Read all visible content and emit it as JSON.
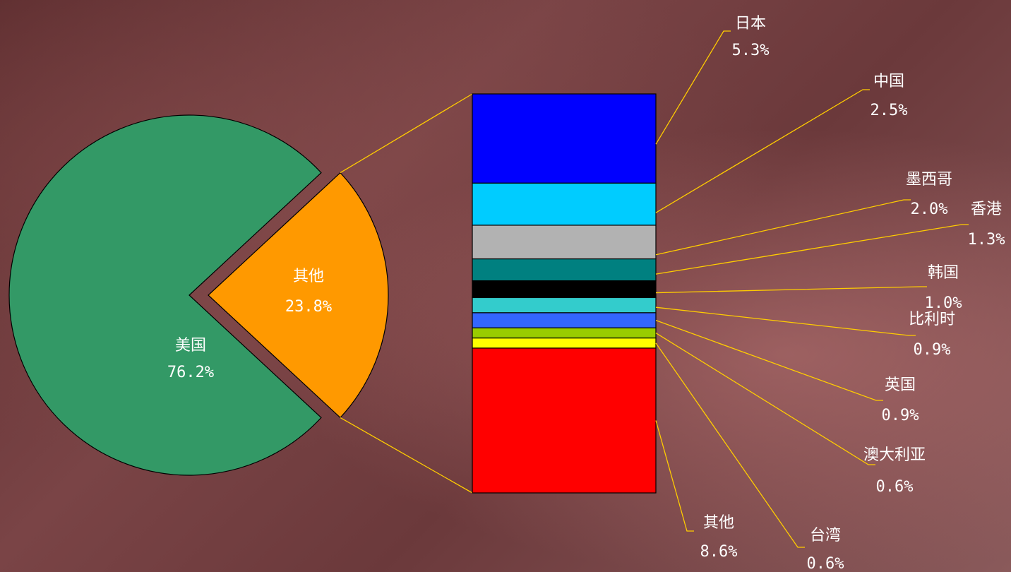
{
  "chart_data": [
    {
      "type": "pie",
      "slices": [
        {
          "label": "美国",
          "value": 76.2,
          "pct": "76.2%",
          "color": "#339966"
        },
        {
          "label": "其他",
          "value": 23.8,
          "pct": "23.8%",
          "color": "#ff9900"
        }
      ]
    },
    {
      "type": "bar",
      "stacked": true,
      "series": [
        {
          "label": "日本",
          "value": 5.3,
          "pct": "5.3%",
          "color": "#0000ff"
        },
        {
          "label": "中国",
          "value": 2.5,
          "pct": "2.5%",
          "color": "#00ccff"
        },
        {
          "label": "墨西哥",
          "value": 2.0,
          "pct": "2.0%",
          "color": "#b2b2b2"
        },
        {
          "label": "香港",
          "value": 1.3,
          "pct": "1.3%",
          "color": "#008080"
        },
        {
          "label": "韩国",
          "value": 1.0,
          "pct": "1.0%",
          "color": "#000000"
        },
        {
          "label": "比利时",
          "value": 0.9,
          "pct": "0.9%",
          "color": "#33cccc"
        },
        {
          "label": "英国",
          "value": 0.9,
          "pct": "0.9%",
          "color": "#3366ff"
        },
        {
          "label": "澳大利亚",
          "value": 0.6,
          "pct": "0.6%",
          "color": "#99cc00"
        },
        {
          "label": "台湾",
          "value": 0.6,
          "pct": "0.6%",
          "color": "#ffff00"
        },
        {
          "label": "其他",
          "value": 8.6,
          "pct": "8.6%",
          "color": "#ff0000"
        }
      ]
    }
  ],
  "colors": {
    "leader_line": "#ffcc00",
    "label_text": "#ffffff"
  }
}
